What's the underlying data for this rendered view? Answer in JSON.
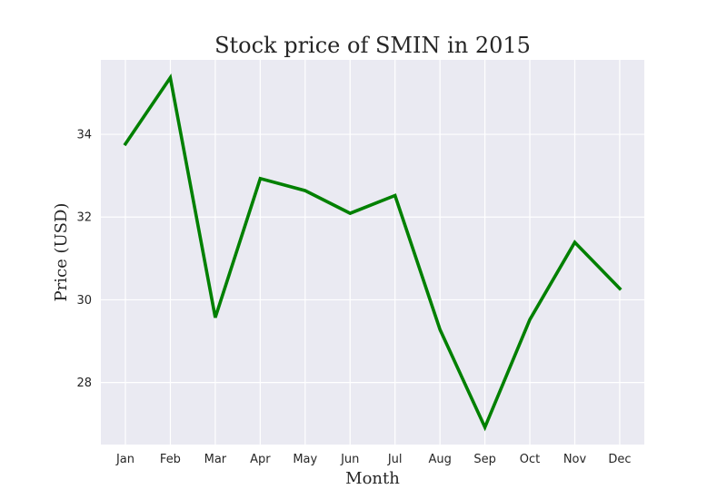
{
  "chart_data": {
    "type": "line",
    "title": "Stock price of SMIN in 2015",
    "xlabel": "Month",
    "ylabel": "Price (USD)",
    "categories": [
      "Jan",
      "Feb",
      "Mar",
      "Apr",
      "May",
      "Jun",
      "Jul",
      "Aug",
      "Sep",
      "Oct",
      "Nov",
      "Dec"
    ],
    "series": [
      {
        "values": [
          33.77,
          35.37,
          29.57,
          32.93,
          32.64,
          32.09,
          32.52,
          29.28,
          26.92,
          29.52,
          31.39,
          30.27
        ],
        "color": "#008000"
      }
    ],
    "yticks": [
      28,
      30,
      32,
      34
    ],
    "ylim": [
      26.5,
      35.8
    ],
    "grid": true,
    "legend": "none"
  },
  "colors": {
    "plot_background": "#eaeaf2",
    "grid": "#ffffff",
    "text": "#262626"
  }
}
